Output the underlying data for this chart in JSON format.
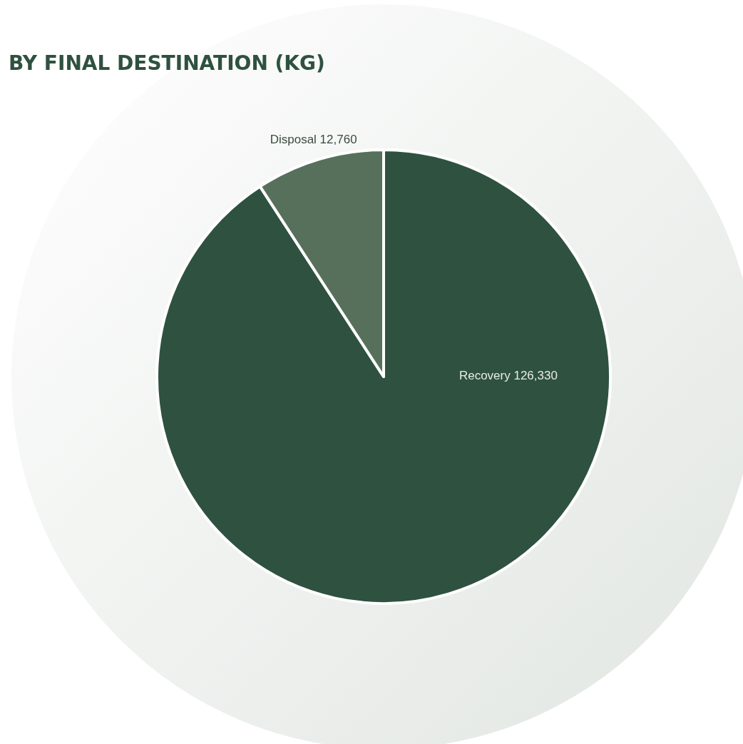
{
  "chart_data": {
    "type": "pie",
    "title": "BY FINAL DESTINATION (KG)",
    "categories": [
      "Recovery",
      "Disposal"
    ],
    "values": [
      126330,
      12760
    ],
    "colors": [
      "#2f5140",
      "#57705c"
    ],
    "value_labels": [
      "126,330",
      "12,760"
    ]
  }
}
